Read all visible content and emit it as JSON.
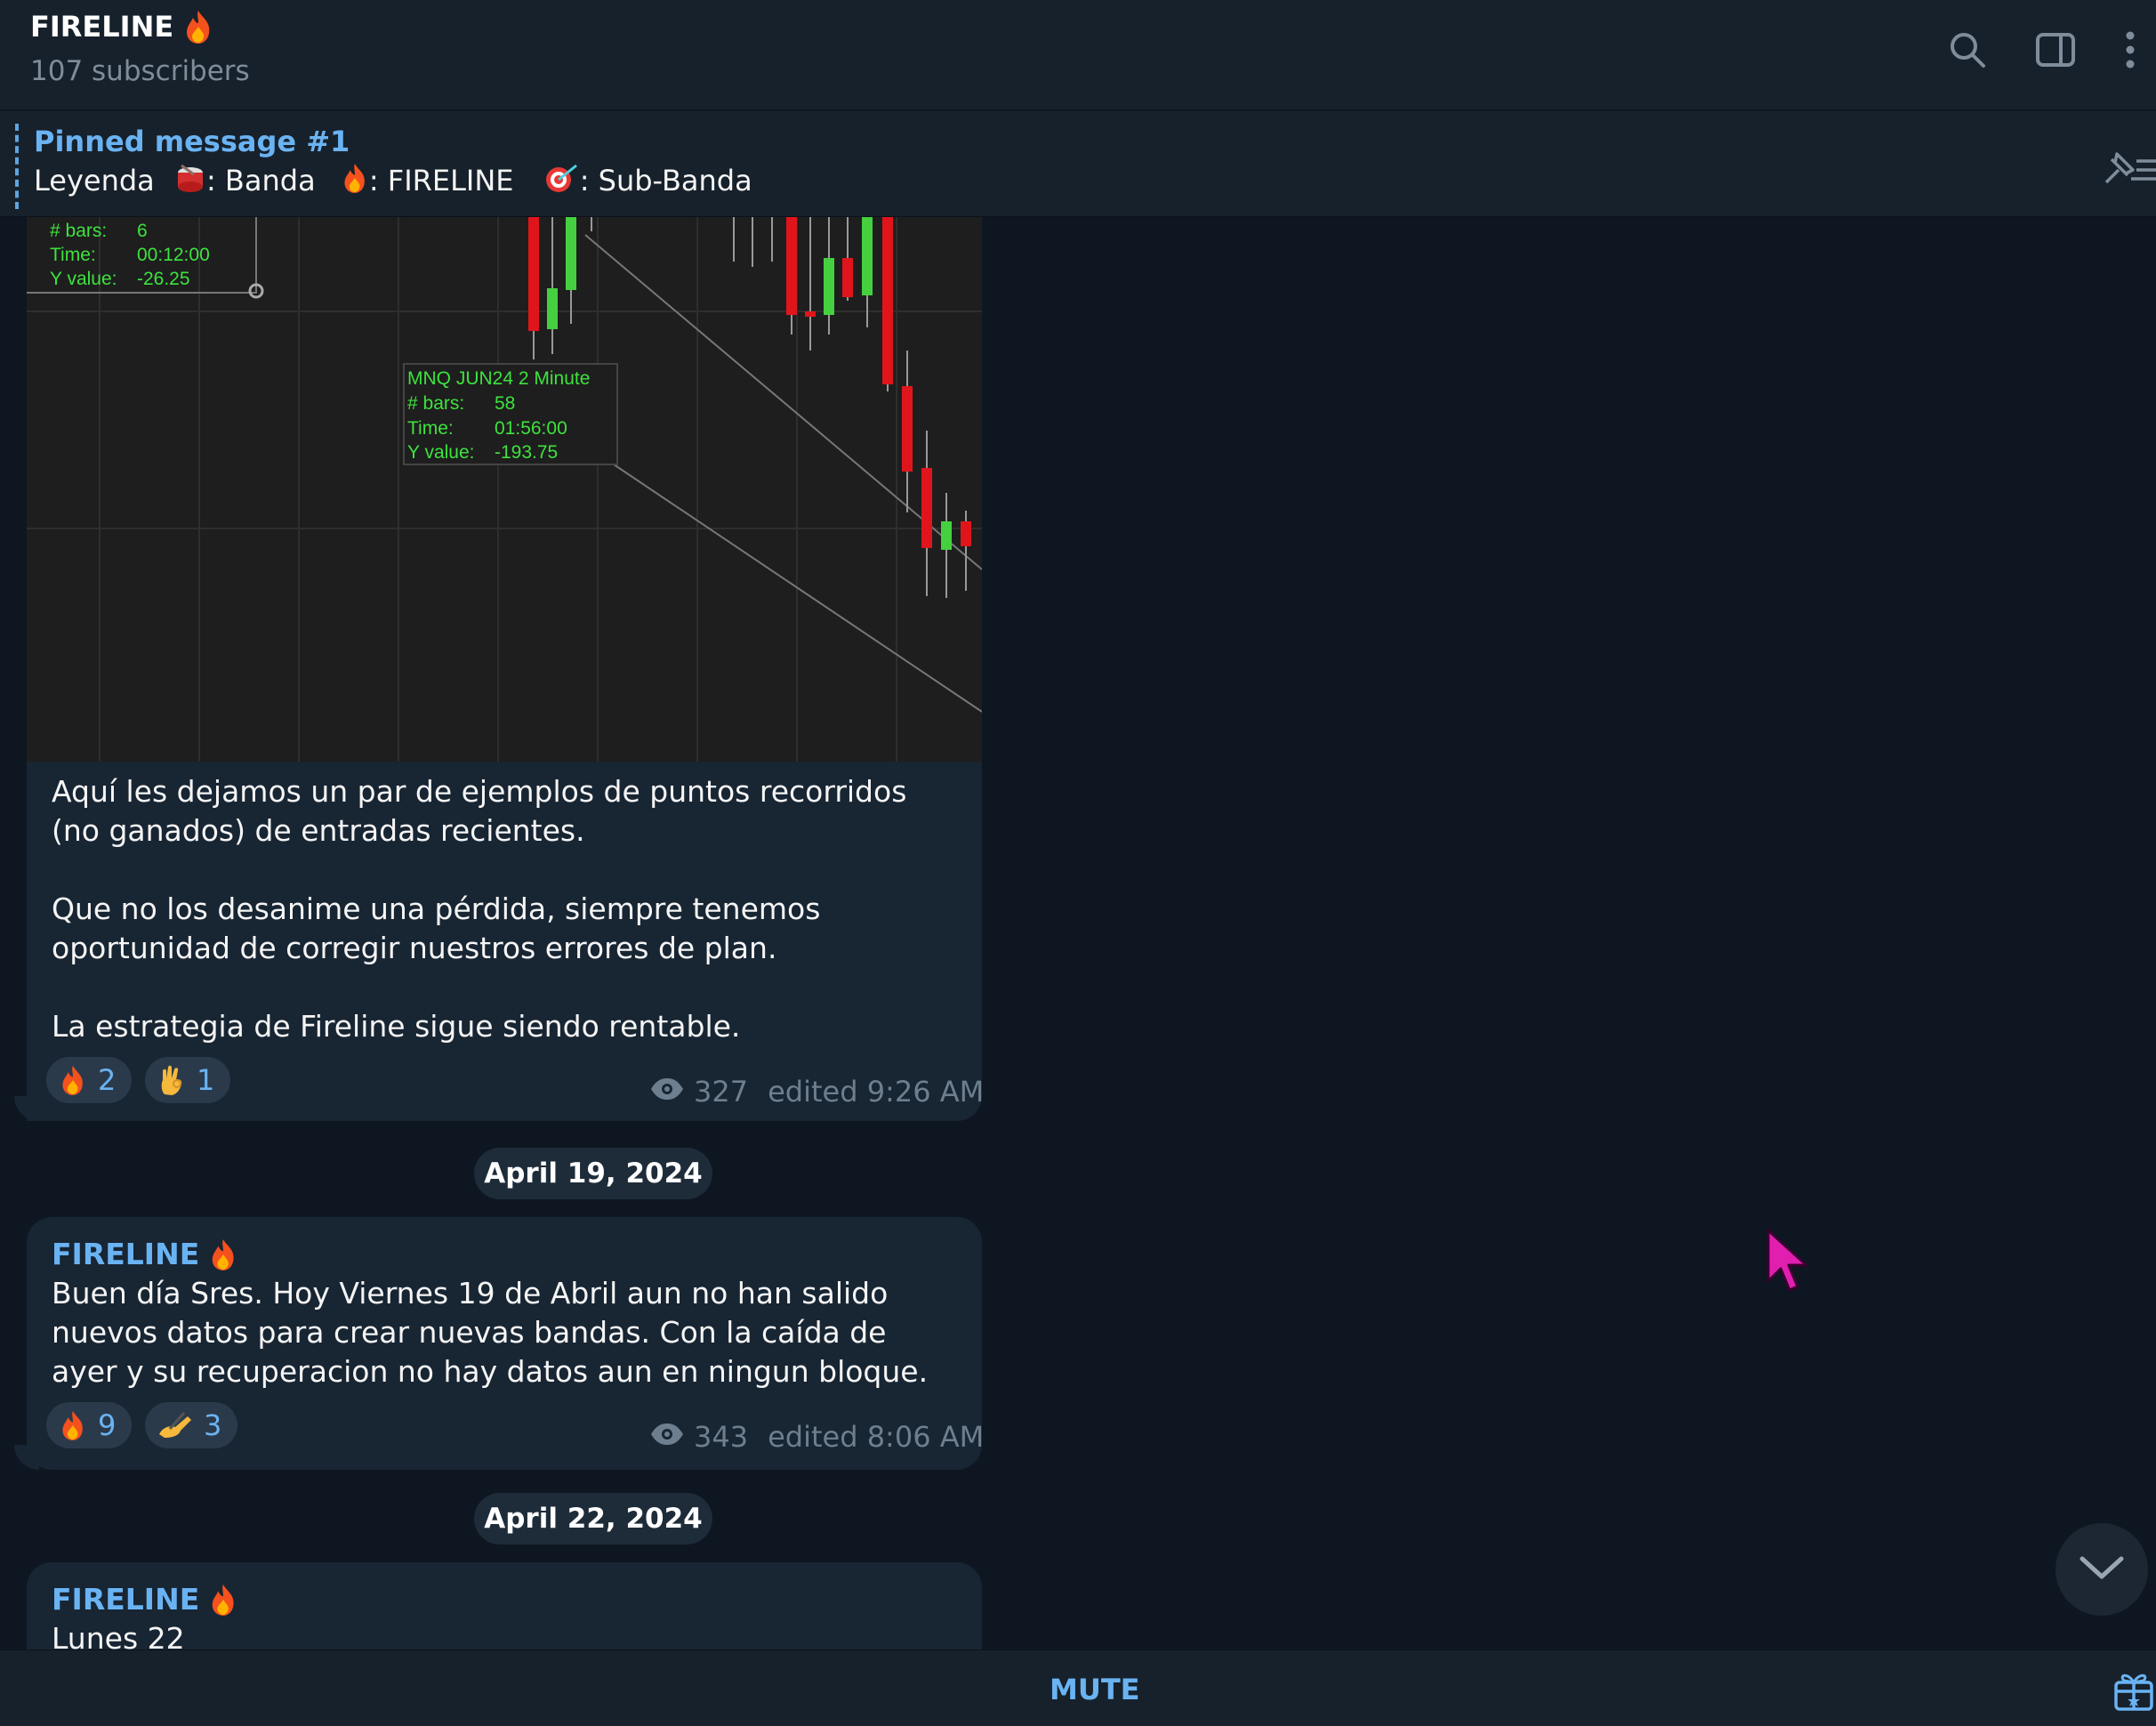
{
  "header": {
    "title": "FIRELINE",
    "subtitle": "107 subscribers"
  },
  "pinned": {
    "title": "Pinned message #1",
    "text_parts": {
      "p1": "Leyenda",
      "p2": ": Banda",
      "p3": ": FIRELINE",
      "p4": ": Sub-Banda"
    }
  },
  "chart_overlay": {
    "box1": {
      "line1": "# bars:",
      "line1v": "6",
      "line2": "Time:",
      "line2v": "00:12:00",
      "line3": "Y value:",
      "line3v": "-26.25"
    },
    "box2": {
      "title": "MNQ JUN24 2 Minute",
      "line1": "# bars:",
      "line1v": "58",
      "line2": "Time:",
      "line2v": "01:56:00",
      "line3": "Y value:",
      "line3v": "-193.75"
    }
  },
  "messages": [
    {
      "text": "Aquí les dejamos un par de ejemplos de puntos recorridos (no ganados) de entradas recientes.\n\nQue no los desanime una pérdida, siempre tenemos oportunidad de corregir nuestros errores de plan.\n\nLa estrategia de Fireline sigue siendo rentable.",
      "reactions": [
        {
          "emoji": "fire",
          "count": "2"
        },
        {
          "emoji": "ok-hand",
          "count": "1"
        }
      ],
      "views": "327",
      "edited": "edited 9:26 AM"
    },
    {
      "date": "April 19, 2024",
      "sender": "FIRELINE",
      "text": "Buen día Sres. Hoy Viernes 19 de Abril aun no han salido nuevos datos para crear nuevas bandas. Con la caída de ayer y su recuperacion no hay datos aun en ningun bloque.",
      "reactions": [
        {
          "emoji": "fire",
          "count": "9"
        },
        {
          "emoji": "writing-hand",
          "count": "3"
        }
      ],
      "views": "343",
      "edited": "edited 8:06 AM"
    },
    {
      "date": "April 22, 2024",
      "sender": "FIRELINE",
      "text": "Lunes 22"
    }
  ],
  "bottom": {
    "mute_label": "MUTE"
  },
  "colors": {
    "accent": "#6ab3f3",
    "bubble": "#182533",
    "background": "#0e1621",
    "header": "#17212b"
  }
}
